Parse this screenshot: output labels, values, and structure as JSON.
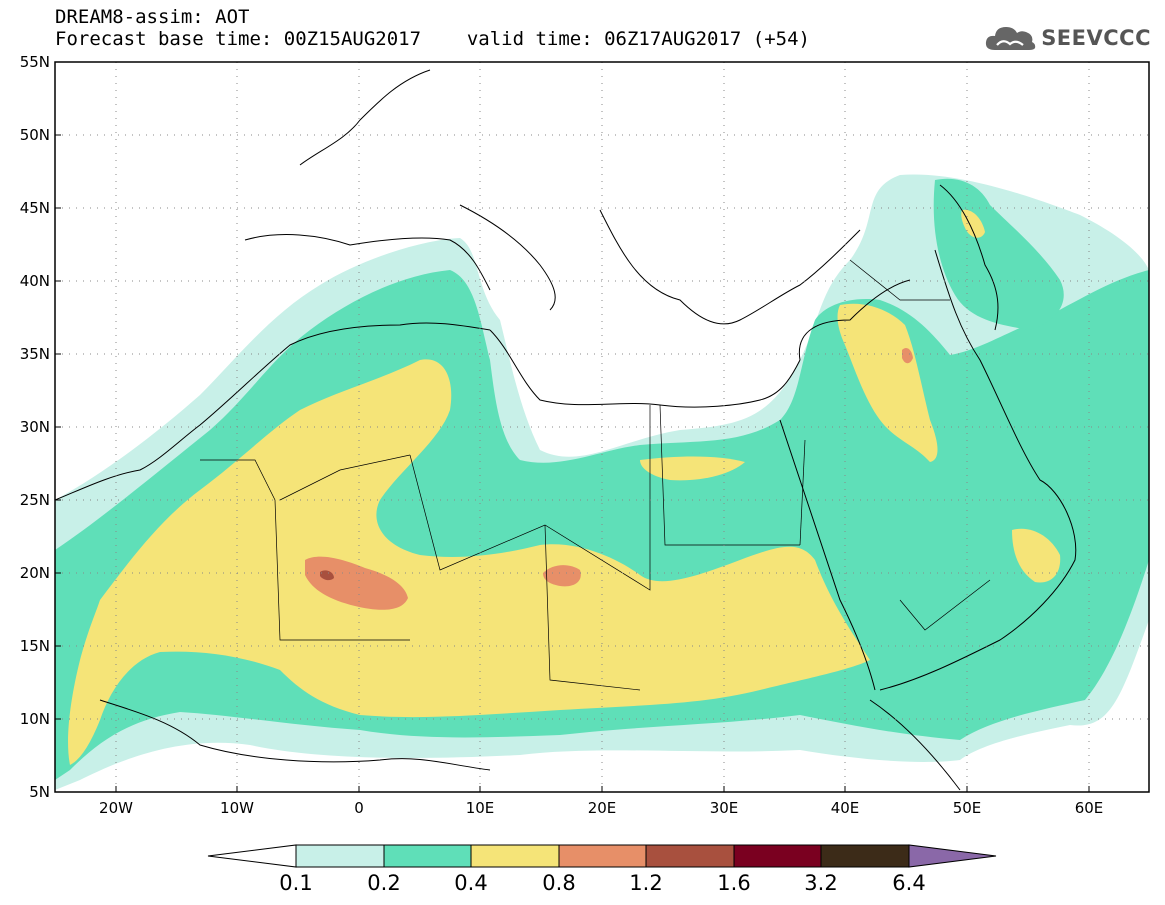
{
  "header": {
    "line1": "DREAM8-assim: AOT",
    "base_time_label": "Forecast base time: 00Z15AUG2017",
    "valid_time_label": "valid time: 06Z17AUG2017 (+54)"
  },
  "logo": {
    "text": "SEEVCCC",
    "icon": "cloud-icon"
  },
  "map": {
    "lon_ticks": [
      "20W",
      "10W",
      "0",
      "10E",
      "20E",
      "30E",
      "40E",
      "50E",
      "60E"
    ],
    "lat_ticks": [
      "55N",
      "50N",
      "45N",
      "40N",
      "35N",
      "30N",
      "25N",
      "20N",
      "15N",
      "10N",
      "5N"
    ],
    "lon_range": [
      -25,
      65
    ],
    "lat_range": [
      5,
      55
    ],
    "grid": "dotted"
  },
  "colorbar": {
    "labels": [
      "0.1",
      "0.2",
      "0.4",
      "0.8",
      "1.2",
      "1.6",
      "3.2",
      "6.4"
    ],
    "colors": [
      "#c8f0e8",
      "#5fdfb8",
      "#f5e478",
      "#e78f68",
      "#a8503e",
      "#7a0020",
      "#3c2b18"
    ],
    "extend_low_color": "#ffffff",
    "extend_high_color": "#8a68a8"
  }
}
